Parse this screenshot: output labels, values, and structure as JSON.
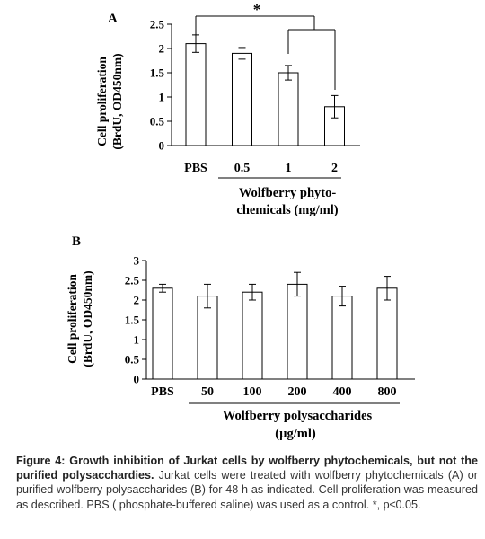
{
  "chart_data": [
    {
      "type": "bar",
      "panel_label": "A",
      "ylabel_line1": "Cell proliferation",
      "ylabel_line2": "(BrdU, OD450nm)",
      "ylim": [
        0,
        2.5
      ],
      "yticks": [
        "0",
        "0.5",
        "1",
        "1.5",
        "2",
        "2.5"
      ],
      "categories": [
        "PBS",
        "0.5",
        "1",
        "2"
      ],
      "values": [
        2.1,
        1.9,
        1.5,
        0.8
      ],
      "errors": [
        0.18,
        0.12,
        0.15,
        0.23
      ],
      "xlabel_line1": "Wolfberry phyto-",
      "xlabel_line2": "chemicals (mg/ml)",
      "significance": {
        "symbol": "*",
        "from": "PBS",
        "to": [
          "1",
          "2"
        ]
      },
      "bar_fill": "#ffffff",
      "bar_stroke": "#000000"
    },
    {
      "type": "bar",
      "panel_label": "B",
      "ylabel_line1": "Cell proliferation",
      "ylabel_line2": "(BrdU, OD450nm)",
      "ylim": [
        0,
        3
      ],
      "yticks": [
        "0",
        "0.5",
        "1",
        "1.5",
        "2",
        "2.5",
        "3"
      ],
      "categories": [
        "PBS",
        "50",
        "100",
        "200",
        "400",
        "800"
      ],
      "values": [
        2.3,
        2.1,
        2.2,
        2.4,
        2.1,
        2.3
      ],
      "errors": [
        0.1,
        0.3,
        0.2,
        0.3,
        0.25,
        0.3
      ],
      "xlabel_line1": "Wolfberry polysaccharides",
      "xlabel_line2": "(µg/ml)",
      "bar_fill": "#ffffff",
      "bar_stroke": "#000000"
    }
  ],
  "caption": {
    "bold": "Figure 4: Growth inhibition of Jurkat cells by wolfberry phytochemicals, but not the purified polysacchardies.",
    "text": " Jurkat cells were treated with wolfberry phytochemicals (A) or purified wolfberry polysaccharides (B) for 48 h as indicated. Cell proliferation was measured as described.  PBS ( phosphate-buffered saline) was used as a control.  *,  p≤0.05."
  }
}
